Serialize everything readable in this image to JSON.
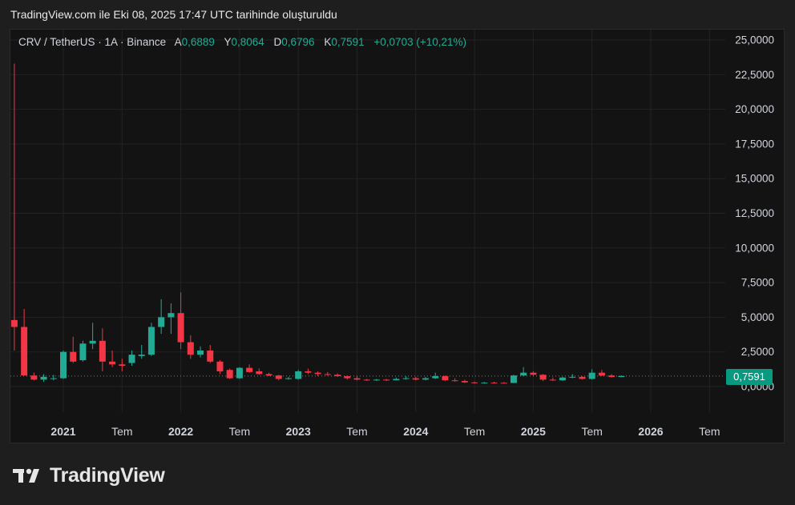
{
  "header": {
    "title": "TradingView.com ile Eki 08, 2025 17:47 UTC tarihinde oluşturuldu"
  },
  "legend": {
    "symbol": "CRV / TetherUS · 1A · Binance",
    "open_label": "A",
    "open": "0,6889",
    "high_label": "Y",
    "high": "0,8064",
    "low_label": "D",
    "low": "0,6796",
    "close_label": "K",
    "close": "0,7591",
    "change": "+0,0703 (+10,21%)"
  },
  "price_tag": "0,7591",
  "brand": {
    "name": "TradingView"
  },
  "colors": {
    "up": "#22ab94",
    "down": "#f23645",
    "grid": "#232323",
    "background": "#131313"
  },
  "chart_data": {
    "type": "candlestick",
    "interval": "1 month",
    "ylim": [
      -0.5,
      25.5
    ],
    "y_ticks": [
      0,
      2.5,
      5,
      7.5,
      10,
      12.5,
      15,
      17.5,
      20,
      22.5,
      25
    ],
    "y_tick_labels": [
      "0,0000",
      "2,5000",
      "5,0000",
      "7,5000",
      "10,0000",
      "12,5000",
      "15,0000",
      "17,5000",
      "20,0000",
      "22,5000",
      "25,0000"
    ],
    "x_ticks": [
      {
        "date": "2021-01",
        "label": "2021",
        "major": true
      },
      {
        "date": "2021-07",
        "label": "Tem",
        "major": false
      },
      {
        "date": "2022-01",
        "label": "2022",
        "major": true
      },
      {
        "date": "2022-07",
        "label": "Tem",
        "major": false
      },
      {
        "date": "2023-01",
        "label": "2023",
        "major": true
      },
      {
        "date": "2023-07",
        "label": "Tem",
        "major": false
      },
      {
        "date": "2024-01",
        "label": "2024",
        "major": true
      },
      {
        "date": "2024-07",
        "label": "Tem",
        "major": false
      },
      {
        "date": "2025-01",
        "label": "2025",
        "major": true
      },
      {
        "date": "2025-07",
        "label": "Tem",
        "major": false
      },
      {
        "date": "2026-01",
        "label": "2026",
        "major": true
      },
      {
        "date": "2026-07",
        "label": "Tem",
        "major": false
      }
    ],
    "last_price": 0.7591,
    "candles": [
      {
        "date": "2020-08",
        "o": 4.8,
        "h": 23.3,
        "l": 2.6,
        "c": 4.3
      },
      {
        "date": "2020-09",
        "o": 4.3,
        "h": 5.6,
        "l": 1.0,
        "c": 0.8
      },
      {
        "date": "2020-10",
        "o": 0.8,
        "h": 1.0,
        "l": 0.45,
        "c": 0.5
      },
      {
        "date": "2020-11",
        "o": 0.5,
        "h": 0.9,
        "l": 0.35,
        "c": 0.7
      },
      {
        "date": "2020-12",
        "o": 0.55,
        "h": 0.85,
        "l": 0.45,
        "c": 0.6
      },
      {
        "date": "2021-01",
        "o": 0.6,
        "h": 2.6,
        "l": 0.55,
        "c": 2.5
      },
      {
        "date": "2021-02",
        "o": 2.5,
        "h": 3.6,
        "l": 1.7,
        "c": 1.8
      },
      {
        "date": "2021-03",
        "o": 1.9,
        "h": 3.3,
        "l": 1.8,
        "c": 3.1
      },
      {
        "date": "2021-04",
        "o": 3.1,
        "h": 4.6,
        "l": 2.7,
        "c": 3.3
      },
      {
        "date": "2021-05",
        "o": 3.3,
        "h": 4.2,
        "l": 1.1,
        "c": 1.8
      },
      {
        "date": "2021-06",
        "o": 1.8,
        "h": 2.6,
        "l": 1.4,
        "c": 1.6
      },
      {
        "date": "2021-07",
        "o": 1.6,
        "h": 2.0,
        "l": 1.1,
        "c": 1.5
      },
      {
        "date": "2021-08",
        "o": 1.7,
        "h": 2.6,
        "l": 1.5,
        "c": 2.3
      },
      {
        "date": "2021-09",
        "o": 2.2,
        "h": 3.0,
        "l": 2.0,
        "c": 2.3
      },
      {
        "date": "2021-10",
        "o": 2.3,
        "h": 4.6,
        "l": 2.2,
        "c": 4.3
      },
      {
        "date": "2021-11",
        "o": 4.3,
        "h": 6.3,
        "l": 3.8,
        "c": 5.0
      },
      {
        "date": "2021-12",
        "o": 5.0,
        "h": 6.0,
        "l": 3.8,
        "c": 5.3
      },
      {
        "date": "2022-01",
        "o": 5.3,
        "h": 6.8,
        "l": 2.7,
        "c": 3.2
      },
      {
        "date": "2022-02",
        "o": 3.2,
        "h": 3.7,
        "l": 2.0,
        "c": 2.3
      },
      {
        "date": "2022-03",
        "o": 2.3,
        "h": 2.9,
        "l": 2.1,
        "c": 2.6
      },
      {
        "date": "2022-04",
        "o": 2.6,
        "h": 3.0,
        "l": 1.7,
        "c": 1.8
      },
      {
        "date": "2022-05",
        "o": 1.8,
        "h": 1.9,
        "l": 0.9,
        "c": 1.1
      },
      {
        "date": "2022-06",
        "o": 1.2,
        "h": 1.3,
        "l": 0.55,
        "c": 0.6
      },
      {
        "date": "2022-07",
        "o": 0.6,
        "h": 1.4,
        "l": 0.55,
        "c": 1.35
      },
      {
        "date": "2022-08",
        "o": 1.35,
        "h": 1.6,
        "l": 1.0,
        "c": 1.05
      },
      {
        "date": "2022-09",
        "o": 1.1,
        "h": 1.3,
        "l": 0.85,
        "c": 0.9
      },
      {
        "date": "2022-10",
        "o": 0.9,
        "h": 1.0,
        "l": 0.75,
        "c": 0.8
      },
      {
        "date": "2022-11",
        "o": 0.8,
        "h": 0.85,
        "l": 0.45,
        "c": 0.55
      },
      {
        "date": "2022-12",
        "o": 0.6,
        "h": 0.7,
        "l": 0.5,
        "c": 0.6
      },
      {
        "date": "2023-01",
        "o": 0.55,
        "h": 1.2,
        "l": 0.5,
        "c": 1.1
      },
      {
        "date": "2023-02",
        "o": 1.1,
        "h": 1.3,
        "l": 0.9,
        "c": 1.0
      },
      {
        "date": "2023-03",
        "o": 1.0,
        "h": 1.1,
        "l": 0.75,
        "c": 0.9
      },
      {
        "date": "2023-04",
        "o": 0.9,
        "h": 1.05,
        "l": 0.8,
        "c": 0.85
      },
      {
        "date": "2023-05",
        "o": 0.85,
        "h": 0.95,
        "l": 0.7,
        "c": 0.75
      },
      {
        "date": "2023-06",
        "o": 0.75,
        "h": 0.8,
        "l": 0.5,
        "c": 0.6
      },
      {
        "date": "2023-07",
        "o": 0.6,
        "h": 0.8,
        "l": 0.45,
        "c": 0.5
      },
      {
        "date": "2023-08",
        "o": 0.5,
        "h": 0.55,
        "l": 0.4,
        "c": 0.45
      },
      {
        "date": "2023-09",
        "o": 0.45,
        "h": 0.55,
        "l": 0.4,
        "c": 0.5
      },
      {
        "date": "2023-10",
        "o": 0.5,
        "h": 0.55,
        "l": 0.4,
        "c": 0.45
      },
      {
        "date": "2023-11",
        "o": 0.45,
        "h": 0.65,
        "l": 0.45,
        "c": 0.55
      },
      {
        "date": "2023-12",
        "o": 0.55,
        "h": 0.75,
        "l": 0.5,
        "c": 0.6
      },
      {
        "date": "2024-01",
        "o": 0.6,
        "h": 0.7,
        "l": 0.45,
        "c": 0.5
      },
      {
        "date": "2024-02",
        "o": 0.5,
        "h": 0.7,
        "l": 0.45,
        "c": 0.6
      },
      {
        "date": "2024-03",
        "o": 0.6,
        "h": 1.0,
        "l": 0.55,
        "c": 0.75
      },
      {
        "date": "2024-04",
        "o": 0.75,
        "h": 0.8,
        "l": 0.4,
        "c": 0.45
      },
      {
        "date": "2024-05",
        "o": 0.45,
        "h": 0.6,
        "l": 0.35,
        "c": 0.4
      },
      {
        "date": "2024-06",
        "o": 0.4,
        "h": 0.5,
        "l": 0.25,
        "c": 0.3
      },
      {
        "date": "2024-07",
        "o": 0.3,
        "h": 0.35,
        "l": 0.22,
        "c": 0.25
      },
      {
        "date": "2024-08",
        "o": 0.26,
        "h": 0.33,
        "l": 0.22,
        "c": 0.28
      },
      {
        "date": "2024-09",
        "o": 0.28,
        "h": 0.35,
        "l": 0.24,
        "c": 0.27
      },
      {
        "date": "2024-10",
        "o": 0.27,
        "h": 0.32,
        "l": 0.24,
        "c": 0.26
      },
      {
        "date": "2024-11",
        "o": 0.26,
        "h": 0.85,
        "l": 0.25,
        "c": 0.8
      },
      {
        "date": "2024-12",
        "o": 0.8,
        "h": 1.4,
        "l": 0.75,
        "c": 1.0
      },
      {
        "date": "2025-01",
        "o": 1.0,
        "h": 1.1,
        "l": 0.8,
        "c": 0.85
      },
      {
        "date": "2025-02",
        "o": 0.85,
        "h": 0.9,
        "l": 0.4,
        "c": 0.5
      },
      {
        "date": "2025-03",
        "o": 0.5,
        "h": 0.65,
        "l": 0.4,
        "c": 0.45
      },
      {
        "date": "2025-04",
        "o": 0.45,
        "h": 0.7,
        "l": 0.4,
        "c": 0.65
      },
      {
        "date": "2025-05",
        "o": 0.65,
        "h": 0.9,
        "l": 0.6,
        "c": 0.7
      },
      {
        "date": "2025-06",
        "o": 0.7,
        "h": 0.75,
        "l": 0.5,
        "c": 0.55
      },
      {
        "date": "2025-07",
        "o": 0.55,
        "h": 1.25,
        "l": 0.5,
        "c": 1.0
      },
      {
        "date": "2025-08",
        "o": 1.0,
        "h": 1.2,
        "l": 0.75,
        "c": 0.8
      },
      {
        "date": "2025-09",
        "o": 0.8,
        "h": 0.9,
        "l": 0.65,
        "c": 0.69
      },
      {
        "date": "2025-10",
        "o": 0.6889,
        "h": 0.8064,
        "l": 0.6796,
        "c": 0.7591
      }
    ]
  }
}
